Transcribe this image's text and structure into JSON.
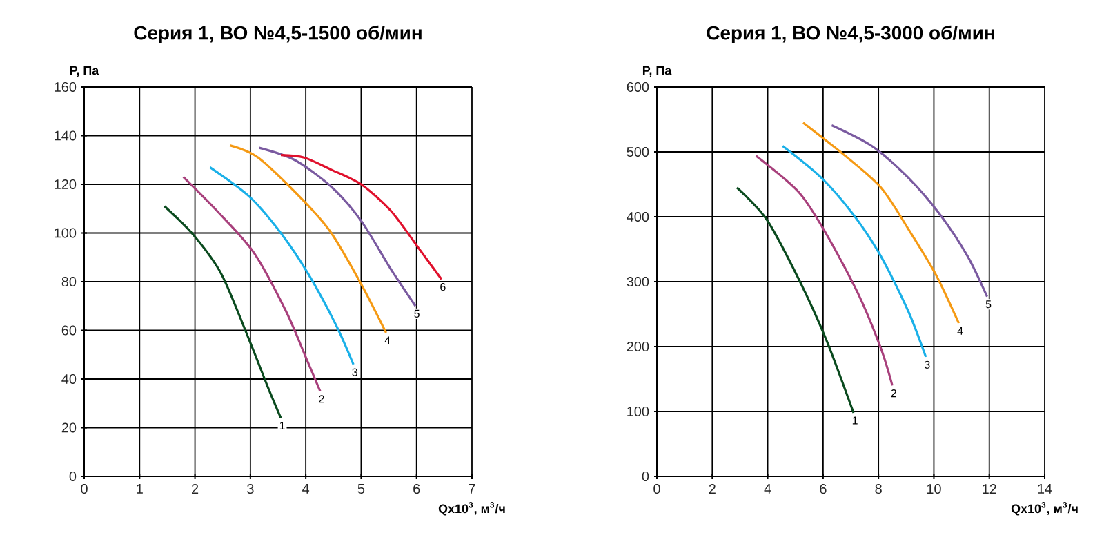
{
  "chart_data": [
    {
      "type": "line",
      "title": "Серия 1, ВО №4,5-1500 об/мин",
      "xlabel": "Qx10$^{3}$, м$^{3}$/ч",
      "ylabel": "P, Па",
      "xlim": [
        0,
        7
      ],
      "ylim": [
        0,
        160
      ],
      "xticks": [
        0,
        1,
        2,
        3,
        4,
        5,
        6,
        7
      ],
      "yticks": [
        0,
        20,
        40,
        60,
        80,
        100,
        120,
        140,
        160
      ],
      "grid": true,
      "series": [
        {
          "name": "1",
          "color": "#0a4a1e",
          "x": [
            1.45,
            1.98,
            2.48,
            2.98,
            3.31,
            3.55
          ],
          "values": [
            111,
            99,
            83,
            56,
            37,
            24
          ]
        },
        {
          "name": "2",
          "color": "#a8407c",
          "x": [
            1.79,
            2.4,
            3.06,
            3.64,
            4.0,
            4.26
          ],
          "values": [
            123,
            109,
            92,
            68,
            49,
            35
          ]
        },
        {
          "name": "3",
          "color": "#1ab0e8",
          "x": [
            2.27,
            2.98,
            3.55,
            4.05,
            4.55,
            4.86
          ],
          "values": [
            127,
            115,
            100,
            83,
            62,
            46
          ]
        },
        {
          "name": "4",
          "color": "#f59a14",
          "x": [
            2.63,
            3.14,
            3.97,
            4.46,
            5.0,
            5.45
          ],
          "values": [
            136,
            131,
            113,
            100,
            79,
            59
          ]
        },
        {
          "name": "5",
          "color": "#7a5aa0",
          "x": [
            3.16,
            3.8,
            4.46,
            5.0,
            5.54,
            5.98
          ],
          "values": [
            135,
            130,
            119,
            105,
            85,
            70
          ]
        },
        {
          "name": "6",
          "color": "#e0102c",
          "x": [
            3.55,
            3.97,
            4.46,
            5.0,
            5.54,
            6.03,
            6.45
          ],
          "values": [
            132,
            131,
            126,
            120,
            109,
            94,
            81
          ]
        }
      ]
    },
    {
      "type": "line",
      "title": "Серия 1, ВО №4,5-3000 об/мин",
      "xlabel": "Qx10$^{3}$, м$^{3}$/ч",
      "ylabel": "P, Па",
      "xlim": [
        0,
        14
      ],
      "ylim": [
        0,
        600
      ],
      "xticks": [
        0,
        2,
        4,
        6,
        8,
        10,
        12,
        14
      ],
      "yticks": [
        0,
        100,
        200,
        300,
        400,
        500,
        600
      ],
      "grid": true,
      "series": [
        {
          "name": "1",
          "color": "#0a4a1e",
          "x": [
            2.89,
            3.96,
            5.12,
            6.11,
            7.1
          ],
          "values": [
            445,
            396,
            304,
            211,
            98
          ]
        },
        {
          "name": "2",
          "color": "#a8407c",
          "x": [
            3.58,
            5.12,
            6.11,
            7.26,
            8.09,
            8.5
          ],
          "values": [
            494,
            438,
            374,
            282,
            197,
            140
          ]
        },
        {
          "name": "3",
          "color": "#1ab0e8",
          "x": [
            4.54,
            5.94,
            7.1,
            8.09,
            9.08,
            9.71
          ],
          "values": [
            509,
            460,
            403,
            339,
            254,
            184
          ]
        },
        {
          "name": "4",
          "color": "#f59a14",
          "x": [
            5.28,
            6.77,
            8.09,
            9.08,
            10.07,
            10.9
          ],
          "values": [
            545,
            495,
            445,
            381,
            311,
            236
          ]
        },
        {
          "name": "5",
          "color": "#7a5aa0",
          "x": [
            6.31,
            7.76,
            9.08,
            10.23,
            11.22,
            11.92
          ],
          "values": [
            541,
            509,
            460,
            403,
            339,
            277
          ]
        }
      ]
    }
  ]
}
